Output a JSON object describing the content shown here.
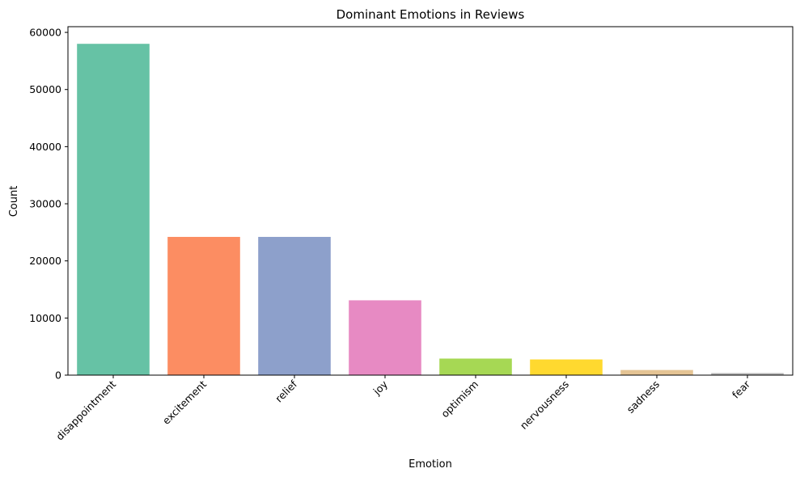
{
  "chart_data": {
    "type": "bar",
    "title": "Dominant Emotions in Reviews",
    "xlabel": "Emotion",
    "ylabel": "Count",
    "categories": [
      "disappointment",
      "excitement",
      "relief",
      "joy",
      "optimism",
      "nervousness",
      "sadness",
      "fear"
    ],
    "values": [
      58000,
      24200,
      24200,
      13100,
      2900,
      2750,
      900,
      350
    ],
    "colors": [
      "#66c2a5",
      "#fc8d62",
      "#8da0cb",
      "#e78ac3",
      "#a6d854",
      "#ffd92f",
      "#e5c494",
      "#b3b3b3"
    ],
    "ylim": [
      0,
      61000
    ],
    "yticks": [
      0,
      10000,
      20000,
      30000,
      40000,
      50000,
      60000
    ],
    "ytick_labels": [
      "0",
      "10000",
      "20000",
      "30000",
      "40000",
      "50000",
      "60000"
    ],
    "grid": false,
    "legend": "none"
  }
}
